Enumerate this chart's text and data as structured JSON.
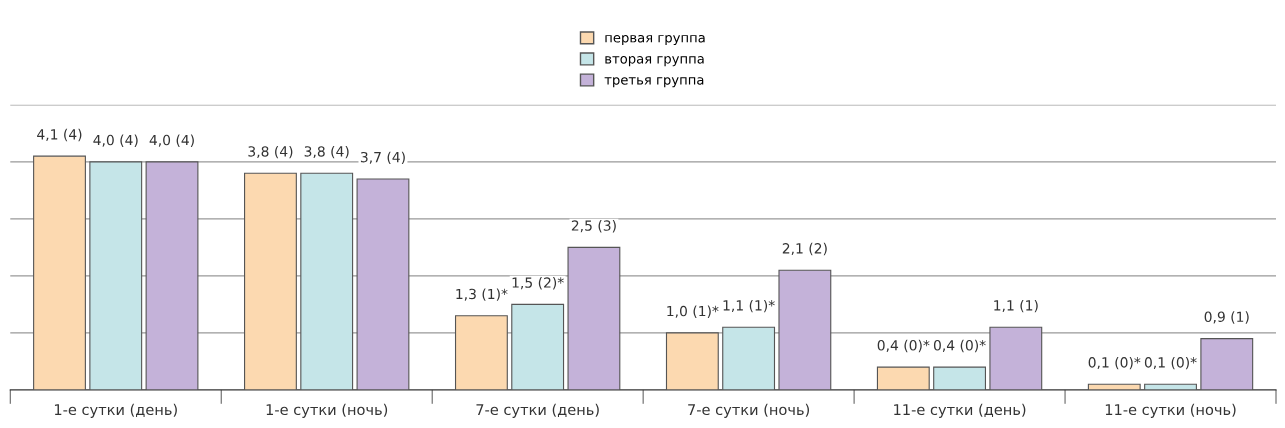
{
  "chart_data": {
    "type": "bar",
    "categories": [
      "1-е сутки (день)",
      "1-е сутки (ночь)",
      "7-е сутки (день)",
      "7-е сутки (ночь)",
      "11-е сутки (день)",
      "11-е сутки (ночь)"
    ],
    "series": [
      {
        "name": "первая группа",
        "color": "#fcd9b0",
        "values": [
          4.1,
          3.8,
          1.3,
          1.0,
          0.4,
          0.1
        ],
        "value_labels": [
          "4,1 (4)",
          "3,8 (4)",
          "1,3 (1)*",
          "1,0 (1)*",
          "0,4 (0)*",
          "0,1 (0)*"
        ]
      },
      {
        "name": "вторая группа",
        "color": "#c5e5e8",
        "values": [
          4.0,
          3.8,
          1.5,
          1.1,
          0.4,
          0.1
        ],
        "value_labels": [
          "4,0 (4)",
          "3,8 (4)",
          "1,5 (2)*",
          "1,1 (1)*",
          "0,4 (0)*",
          "0,1 (0)*"
        ]
      },
      {
        "name": "третья группа",
        "color": "#c4b2d9",
        "values": [
          4.0,
          3.7,
          2.5,
          2.1,
          1.1,
          0.9
        ],
        "value_labels": [
          "4,0 (4)",
          "3,7 (4)",
          "2,5 (3)",
          "2,1 (2)",
          "1,1 (1)",
          "0,9 (1)"
        ]
      }
    ],
    "ylim": [
      0,
      5
    ],
    "yticks": [
      {
        "value": 1,
        "label": null
      },
      {
        "value": 2,
        "label": null
      },
      {
        "value": 3,
        "label": null
      },
      {
        "value": 4,
        "label": null
      },
      {
        "value": 5,
        "label": null
      }
    ],
    "tick_labels": "x",
    "grid": "y",
    "legend": "top"
  }
}
